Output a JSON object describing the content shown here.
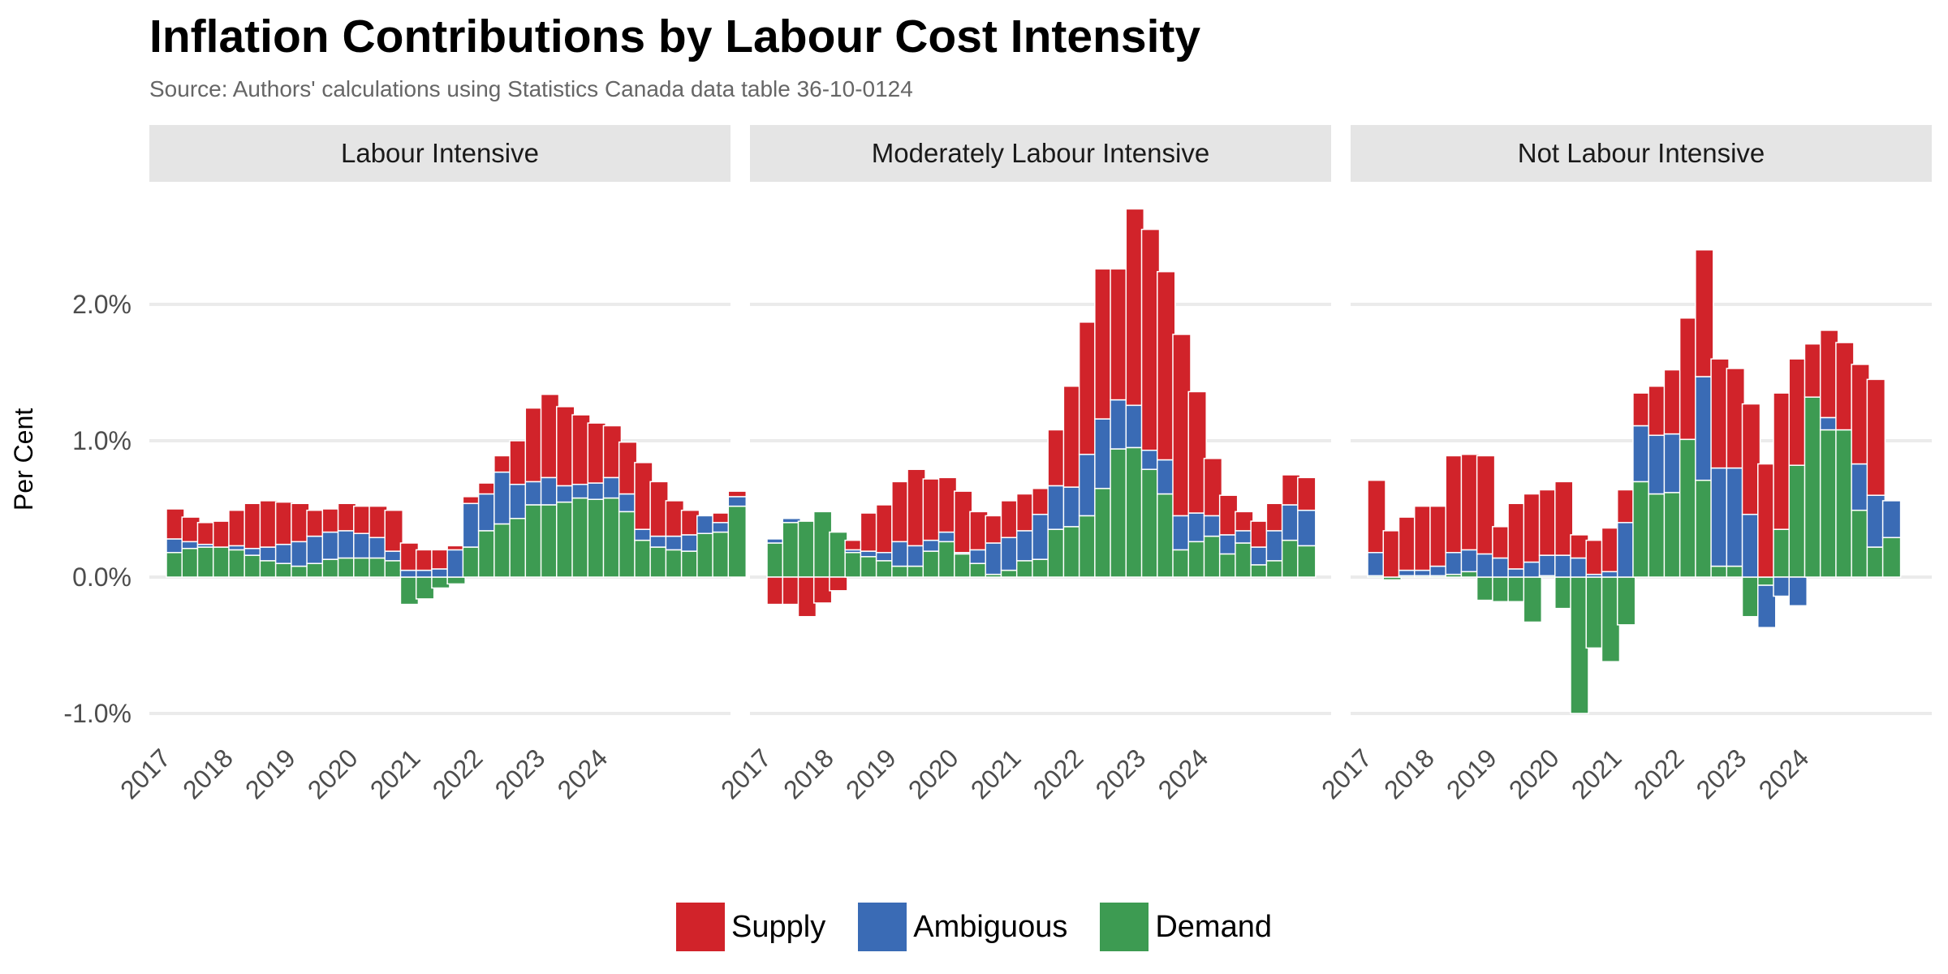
{
  "chart_data": {
    "type": "bar",
    "stacked": true,
    "title": "Inflation Contributions by Labour Cost Intensity",
    "subtitle": "Source: Authors' calculations using Statistics Canada data table 36-10-0124",
    "ylabel": "Per Cent",
    "ylim": [
      -1.0,
      2.7
    ],
    "yticks": [
      "-1.0%",
      "0.0%",
      "1.0%",
      "2.0%"
    ],
    "ytick_values": [
      -1.0,
      0.0,
      1.0,
      2.0
    ],
    "xticks": [
      "2017",
      "2018",
      "2019",
      "2020",
      "2021",
      "2022",
      "2023",
      "2024"
    ],
    "period": "monthly from 2017-01; panels 1-2 end 2025-01, panel 3 ends 2024-12",
    "grid": true,
    "legend_position": "bottom",
    "colors": {
      "Supply": "#d1232a",
      "Ambiguous": "#3a6bb5",
      "Demand": "#3d9b52"
    },
    "panels": [
      {
        "name": "Labour Intensive",
        "series": [
          {
            "name": "Demand",
            "values": [
              0.18,
              0.21,
              0.22,
              0.22,
              0.2,
              0.16,
              0.12,
              0.1,
              0.08,
              0.1,
              0.13,
              0.14,
              0.14,
              0.14,
              0.12,
              -0.2,
              -0.16,
              -0.08,
              -0.05,
              0.22,
              0.34,
              0.39,
              0.43,
              0.53,
              0.53,
              0.55,
              0.58,
              0.57,
              0.58,
              0.48,
              0.27,
              0.22,
              0.2,
              0.19,
              0.32,
              0.33,
              0.52
            ]
          },
          {
            "name": "Ambiguous",
            "values": [
              0.1,
              0.05,
              0.02,
              0.0,
              0.03,
              0.05,
              0.1,
              0.14,
              0.18,
              0.2,
              0.2,
              0.2,
              0.18,
              0.15,
              0.07,
              0.05,
              0.05,
              0.06,
              0.2,
              0.32,
              0.27,
              0.38,
              0.25,
              0.17,
              0.2,
              0.12,
              0.1,
              0.12,
              0.15,
              0.13,
              0.08,
              0.08,
              0.1,
              0.12,
              0.13,
              0.07,
              0.07
            ]
          },
          {
            "name": "Supply",
            "values": [
              0.22,
              0.18,
              0.16,
              0.19,
              0.26,
              0.33,
              0.34,
              0.31,
              0.28,
              0.19,
              0.17,
              0.2,
              0.2,
              0.23,
              0.3,
              0.2,
              0.15,
              0.14,
              0.03,
              0.05,
              0.08,
              0.12,
              0.32,
              0.54,
              0.61,
              0.58,
              0.51,
              0.44,
              0.38,
              0.38,
              0.49,
              0.4,
              0.26,
              0.18,
              0.0,
              0.07,
              0.04
            ]
          }
        ]
      },
      {
        "name": "Moderately Labour Intensive",
        "series": [
          {
            "name": "Demand",
            "values": [
              0.25,
              0.4,
              0.41,
              0.48,
              0.33,
              0.18,
              0.15,
              0.12,
              0.08,
              0.08,
              0.19,
              0.26,
              0.17,
              0.1,
              0.02,
              0.05,
              0.12,
              0.13,
              0.35,
              0.37,
              0.45,
              0.65,
              0.94,
              0.95,
              0.79,
              0.61,
              0.2,
              0.26,
              0.3,
              0.17,
              0.25,
              0.09,
              0.12,
              0.27,
              0.23
            ]
          },
          {
            "name": "Ambiguous",
            "values": [
              0.03,
              0.03,
              0.0,
              0.0,
              0.0,
              0.02,
              0.04,
              0.06,
              0.18,
              0.15,
              0.08,
              0.07,
              0.01,
              0.1,
              0.23,
              0.24,
              0.22,
              0.33,
              0.32,
              0.29,
              0.45,
              0.51,
              0.36,
              0.31,
              0.14,
              0.25,
              0.25,
              0.21,
              0.15,
              0.14,
              0.09,
              0.13,
              0.22,
              0.26,
              0.26
            ]
          },
          {
            "name": "Supply",
            "values": [
              -0.2,
              -0.2,
              -0.29,
              -0.19,
              -0.1,
              0.07,
              0.28,
              0.35,
              0.44,
              0.56,
              0.45,
              0.4,
              0.45,
              0.28,
              0.2,
              0.27,
              0.27,
              0.19,
              0.41,
              0.74,
              0.97,
              1.1,
              0.96,
              1.44,
              1.62,
              1.38,
              1.33,
              0.89,
              0.42,
              0.29,
              0.14,
              0.19,
              0.2,
              0.22,
              0.24
            ]
          }
        ]
      },
      {
        "name": "Not Labour Intensive",
        "series": [
          {
            "name": "Demand",
            "values": [
              0.01,
              -0.02,
              0.01,
              0.01,
              0.01,
              0.02,
              0.04,
              -0.17,
              -0.18,
              -0.18,
              -0.33,
              0.01,
              -0.23,
              -1.0,
              -0.52,
              -0.62,
              -0.35,
              0.7,
              0.61,
              0.62,
              1.01,
              0.71,
              0.08,
              0.08,
              -0.29,
              -0.06,
              0.35,
              0.82,
              1.32,
              1.08,
              1.08,
              0.49,
              0.22,
              0.29
            ]
          },
          {
            "name": "Ambiguous",
            "values": [
              0.17,
              0.0,
              0.04,
              0.04,
              0.07,
              0.16,
              0.16,
              0.17,
              0.14,
              0.06,
              0.11,
              0.15,
              0.16,
              0.14,
              0.02,
              0.04,
              0.4,
              0.41,
              0.43,
              0.43,
              0.0,
              0.76,
              0.72,
              0.72,
              0.46,
              -0.31,
              -0.14,
              -0.21,
              0.0,
              0.09,
              0.0,
              0.34,
              0.38,
              0.27
            ]
          },
          {
            "name": "Supply",
            "values": [
              0.53,
              0.34,
              0.39,
              0.47,
              0.44,
              0.71,
              0.7,
              0.72,
              0.23,
              0.48,
              0.5,
              0.48,
              0.54,
              0.17,
              0.25,
              0.32,
              0.24,
              0.24,
              0.36,
              0.47,
              0.89,
              0.93,
              0.8,
              0.73,
              0.81,
              0.83,
              1.0,
              0.78,
              0.39,
              0.64,
              0.64,
              0.73,
              0.85,
              0.0
            ]
          }
        ]
      }
    ]
  },
  "legend": {
    "items": [
      {
        "label": "Supply",
        "color": "#d1232a"
      },
      {
        "label": "Ambiguous",
        "color": "#3a6bb5"
      },
      {
        "label": "Demand",
        "color": "#3d9b52"
      }
    ]
  }
}
